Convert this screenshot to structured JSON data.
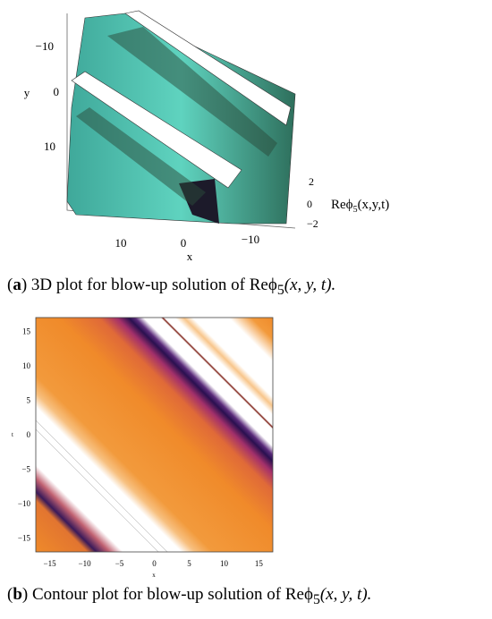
{
  "figure_a": {
    "y_label": "y",
    "y_ticks": [
      "−10",
      "0",
      "10"
    ],
    "x_label": "x",
    "x_ticks": [
      "10",
      "0",
      "−10"
    ],
    "z_ticks": [
      "2",
      "0",
      "−2"
    ],
    "z_label": {
      "text": "Reϕ",
      "subscript": "5",
      "tail": "(x,y,t)"
    },
    "caption": {
      "label": [
        "(",
        "a",
        ")"
      ],
      "text": "3D plot for blow-up solution of Reϕ",
      "subscript": "5",
      "tail": "(x, y, t)."
    }
  },
  "figure_b": {
    "x_label": "x",
    "y_label": "t",
    "x_ticks": [
      "−15",
      "−10",
      "−5",
      "0",
      "5",
      "10",
      "15"
    ],
    "y_ticks": [
      "15",
      "10",
      "5",
      "0",
      "−5",
      "−10",
      "−15"
    ],
    "caption": {
      "label": [
        "(",
        "b",
        ")"
      ],
      "text": "Contour plot for blow-up solution of Reϕ",
      "subscript": "5",
      "tail": "(x, y, t)."
    }
  }
}
